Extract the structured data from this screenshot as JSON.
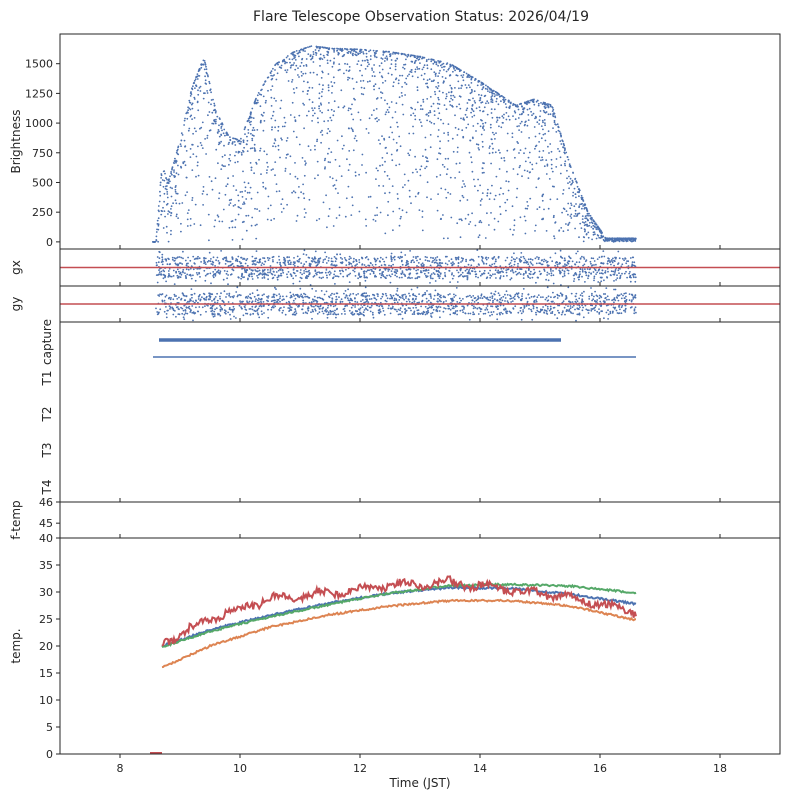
{
  "title": "Flare Telescope Observation Status: 2026/04/19",
  "colors": {
    "blue": "#4c72b0",
    "orange": "#dd8452",
    "green": "#55a868",
    "red": "#c44e52",
    "axis": "#262626"
  },
  "chart_data": [
    {
      "panel": "brightness",
      "type": "scatter",
      "ylabel": "Brightness",
      "xlim": [
        7,
        19
      ],
      "ylim": [
        -60,
        1750
      ],
      "yticks": [
        0,
        250,
        500,
        750,
        1000,
        1250,
        1500
      ],
      "envelope_x": [
        8.6,
        8.7,
        8.8,
        9.0,
        9.2,
        9.4,
        9.6,
        9.8,
        10.0,
        10.3,
        10.6,
        10.9,
        11.2,
        11.5,
        12.0,
        12.5,
        13.0,
        13.5,
        14.0,
        14.3,
        14.6,
        14.9,
        15.2,
        15.5,
        15.8,
        16.1,
        16.6
      ],
      "envelope_y": [
        0,
        650,
        500,
        850,
        1300,
        1550,
        1100,
        900,
        850,
        1250,
        1500,
        1600,
        1650,
        1630,
        1620,
        1600,
        1560,
        1500,
        1350,
        1250,
        1150,
        1200,
        1150,
        650,
        250,
        30,
        30
      ],
      "series_color": "blue"
    },
    {
      "panel": "gx",
      "type": "scatter",
      "ylabel": "gx",
      "xlim": [
        7,
        19
      ],
      "ylim": [
        -1,
        1
      ],
      "reference_line": 0,
      "x_range": [
        8.6,
        16.6
      ],
      "series_color": "blue",
      "line_color": "red"
    },
    {
      "panel": "gy",
      "type": "scatter",
      "ylabel": "gy",
      "xlim": [
        7,
        19
      ],
      "ylim": [
        -1,
        1
      ],
      "reference_line": 0,
      "x_range": [
        8.6,
        16.6
      ],
      "series_color": "blue",
      "line_color": "red"
    },
    {
      "panel": "status",
      "type": "scatter",
      "ylabels": [
        "capture",
        "T1",
        "T2",
        "T3",
        "T4"
      ],
      "xlim": [
        7,
        19
      ],
      "bars": [
        {
          "row": "capture",
          "x_range": [
            8.65,
            15.35
          ],
          "color": "blue"
        },
        {
          "row": "T1",
          "x_range": [
            8.55,
            16.6
          ],
          "color": "blue"
        }
      ]
    },
    {
      "panel": "f-temp",
      "type": "line",
      "ylabel": "f-temp",
      "xlim": [
        7,
        19
      ],
      "ylim": [
        44.3,
        46
      ],
      "yticks": [
        45,
        46
      ]
    },
    {
      "panel": "temp",
      "type": "line",
      "xlabel": "Time (JST)",
      "ylabel": "temp.",
      "xlim": [
        7,
        19
      ],
      "ylim": [
        0,
        40
      ],
      "xticks": [
        8,
        10,
        12,
        14,
        16,
        18
      ],
      "yticks": [
        0,
        5,
        10,
        15,
        20,
        25,
        30,
        35,
        40
      ],
      "series": [
        {
          "color": "blue",
          "x": [
            8.7,
            9.5,
            10.5,
            11.5,
            12.5,
            13.5,
            14.5,
            15.5,
            16.6
          ],
          "y": [
            20,
            23,
            25.7,
            28,
            29.8,
            30.8,
            30.7,
            29.6,
            27.8
          ]
        },
        {
          "color": "green",
          "x": [
            8.7,
            9.5,
            10.5,
            11.5,
            12.5,
            13.5,
            14.5,
            15.5,
            16.6
          ],
          "y": [
            19.8,
            22.7,
            25.4,
            27.7,
            29.8,
            31.2,
            31.4,
            31.1,
            29.8
          ]
        },
        {
          "color": "orange",
          "x": [
            8.7,
            9.5,
            10.5,
            11.5,
            12.5,
            13.5,
            14.5,
            15.5,
            16.6
          ],
          "y": [
            16,
            20,
            23.5,
            25.8,
            27.4,
            28.4,
            28.4,
            27.4,
            24.8
          ]
        },
        {
          "color": "red",
          "x": [
            8.7,
            9.5,
            10.5,
            11.5,
            12.5,
            13.5,
            14.5,
            15.5,
            16.6
          ],
          "y": [
            20.5,
            25,
            28.8,
            29.8,
            31.3,
            31.8,
            30.3,
            29,
            26.3
          ],
          "noisy": true
        }
      ]
    }
  ]
}
